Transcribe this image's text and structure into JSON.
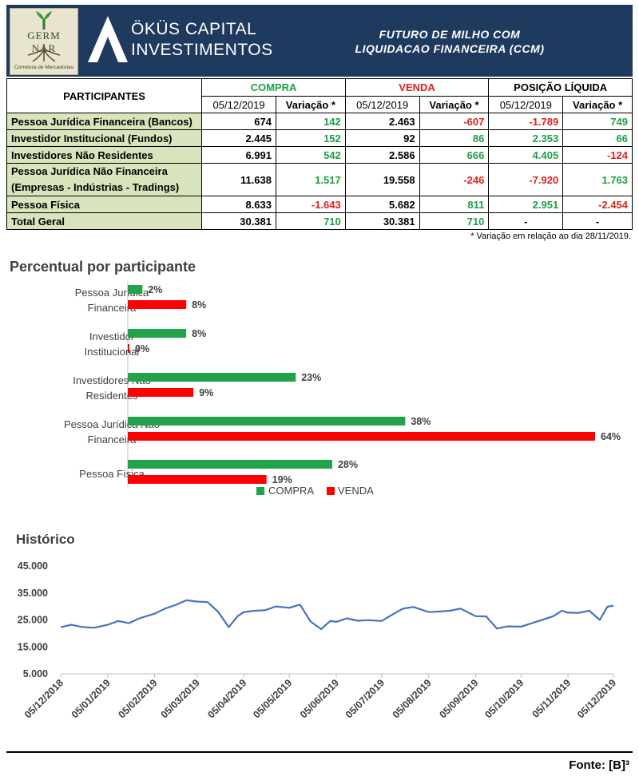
{
  "header": {
    "logo_text": "GERM  NAR",
    "logo_subtitle": "Corretora de Mercadorias",
    "brand_line1": "ÖKÜS CAPITAL",
    "brand_line2": "INVESTIMENTOS",
    "title_line1": "FUTURO DE MILHO COM",
    "title_line2": "LIQUIDACAO FINANCEIRA (CCM)"
  },
  "table": {
    "participants_header": "PARTICIPANTES",
    "groups": [
      "COMPRA",
      "VENDA",
      "POSIÇÃO LÍQUIDA"
    ],
    "group_colors": [
      "#1e9e43",
      "#e0201b",
      "#000000"
    ],
    "subheaders": [
      "05/12/2019",
      "Variação *",
      "05/12/2019",
      "Variação *",
      "05/12/2019",
      "Variação *"
    ],
    "rows": [
      {
        "label": "Pessoa Jurídica Financeira (Bancos)",
        "label2": "",
        "values": [
          "674",
          "142",
          "2.463",
          "-607",
          "-1.789",
          "749"
        ]
      },
      {
        "label": "Investidor Institucional (Fundos)",
        "label2": "",
        "values": [
          "2.445",
          "152",
          "92",
          "86",
          "2.353",
          "66"
        ]
      },
      {
        "label": "Investidores Não Residentes",
        "label2": "",
        "values": [
          "6.991",
          "542",
          "2.586",
          "666",
          "4.405",
          "-124"
        ]
      },
      {
        "label": "Pessoa Jurídica Não Financeira",
        "label2": "(Empresas - Indústrias - Tradings)",
        "values": [
          "11.638",
          "1.517",
          "19.558",
          "-246",
          "-7.920",
          "1.763"
        ]
      },
      {
        "label": "Pessoa Física",
        "label2": "",
        "values": [
          "8.633",
          "-1.643",
          "5.682",
          "811",
          "2.951",
          "-2.454"
        ]
      },
      {
        "label": "Total Geral",
        "label2": "",
        "values": [
          "30.381",
          "710",
          "30.381",
          "710",
          "-",
          "-"
        ]
      }
    ],
    "note": "* Variação em relação ao dia 28/11/2019."
  },
  "chart_data": [
    {
      "type": "bar",
      "orientation": "horizontal",
      "title": "Percentual por participante",
      "categories": [
        [
          "Pessoa Jurídica",
          "Financeira"
        ],
        [
          "Investidor",
          "Institucional"
        ],
        [
          "Investidores Não",
          "Residentes"
        ],
        [
          "Pessoa Jurídica Não",
          "Financeira"
        ],
        [
          "Pessoa Física"
        ]
      ],
      "series": [
        {
          "name": "COMPRA",
          "color": "#21a34a",
          "values": [
            2,
            8,
            23,
            38,
            28
          ],
          "labels": [
            "2%",
            "8%",
            "23%",
            "38%",
            "28%"
          ]
        },
        {
          "name": "VENDA",
          "color": "#ff0000",
          "values": [
            8,
            0,
            9,
            64,
            19
          ],
          "labels": [
            "8%",
            "0%",
            "9%",
            "64%",
            "19%"
          ]
        }
      ],
      "xlim": [
        0,
        64
      ],
      "legend": "bottom"
    },
    {
      "type": "line",
      "title": "Histórico",
      "color": "#4472c4",
      "ylim": [
        5000,
        45000
      ],
      "yticks": [
        5000,
        15000,
        25000,
        35000,
        45000
      ],
      "ytick_labels": [
        "5.000",
        "15.000",
        "25.000",
        "35.000",
        "45.000"
      ],
      "xtick_labels": [
        "05/12/2018",
        "05/01/2019",
        "05/02/2019",
        "05/03/2019",
        "05/04/2019",
        "05/05/2019",
        "05/06/2019",
        "05/07/2019",
        "05/08/2019",
        "05/09/2019",
        "05/10/2019",
        "05/11/2019",
        "05/12/2019"
      ],
      "x": [
        "2018-12-05",
        "2018-12-12",
        "2018-12-19",
        "2018-12-27",
        "2019-01-05",
        "2019-01-12",
        "2019-01-19",
        "2019-01-26",
        "2019-02-05",
        "2019-02-12",
        "2019-02-19",
        "2019-02-26",
        "2019-03-05",
        "2019-03-12",
        "2019-03-19",
        "2019-03-26",
        "2019-04-01",
        "2019-04-05",
        "2019-04-12",
        "2019-04-19",
        "2019-04-26",
        "2019-05-05",
        "2019-05-12",
        "2019-05-19",
        "2019-05-26",
        "2019-06-01",
        "2019-06-05",
        "2019-06-12",
        "2019-06-19",
        "2019-06-26",
        "2019-07-05",
        "2019-07-12",
        "2019-07-19",
        "2019-07-26",
        "2019-08-05",
        "2019-08-12",
        "2019-08-19",
        "2019-08-26",
        "2019-09-05",
        "2019-09-12",
        "2019-09-19",
        "2019-09-26",
        "2019-10-05",
        "2019-10-26",
        "2019-11-01",
        "2019-11-05",
        "2019-11-12",
        "2019-11-19",
        "2019-11-26",
        "2019-12-01",
        "2019-12-05"
      ],
      "y": [
        22300,
        23200,
        22400,
        22100,
        23200,
        24600,
        23800,
        25600,
        27300,
        29200,
        30600,
        32300,
        31800,
        31600,
        28000,
        22300,
        26500,
        27900,
        28400,
        28600,
        30000,
        29500,
        30700,
        24400,
        21600,
        24600,
        24300,
        25600,
        24700,
        24900,
        24600,
        27000,
        29200,
        29800,
        27900,
        28100,
        28400,
        29200,
        26400,
        26300,
        21800,
        22600,
        22500,
        26300,
        28400,
        27700,
        27600,
        28400,
        25000,
        29900,
        30300
      ]
    }
  ],
  "source": "Fonte: [B]³"
}
